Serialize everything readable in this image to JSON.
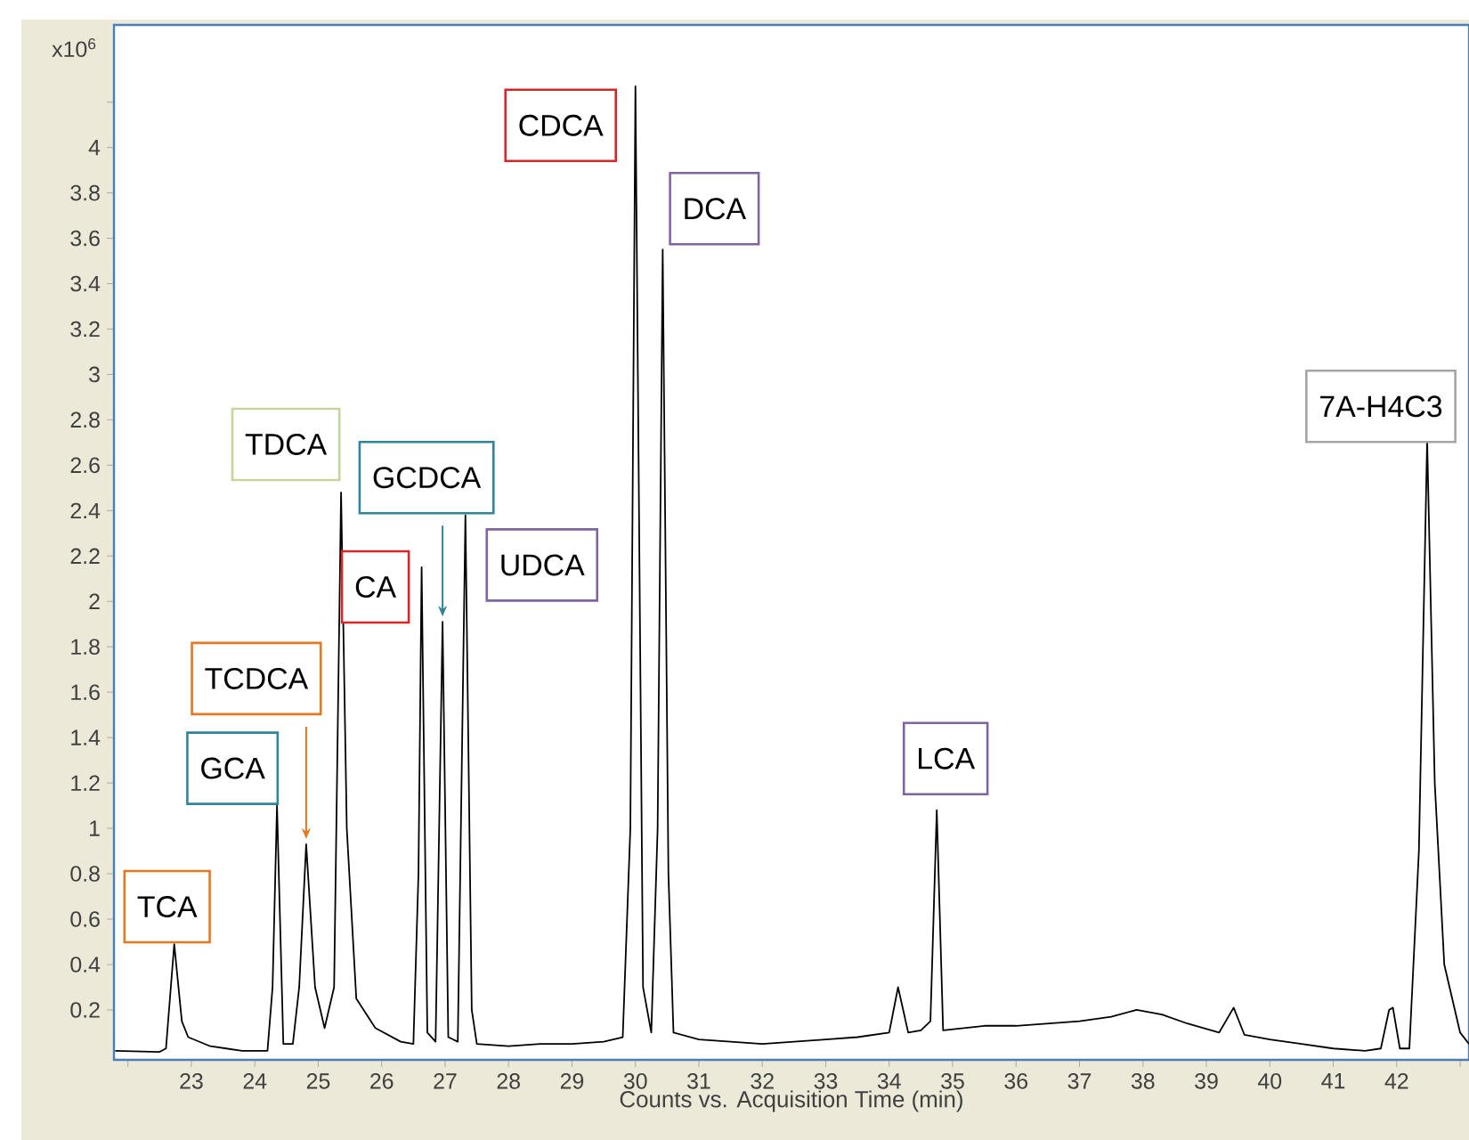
{
  "chart_data": {
    "type": "line",
    "xlabel": "Counts vs. Acquisition Time (min)",
    "ylabel": "x10$^{6}$",
    "xlim": [
      21.78,
      43.14
    ],
    "ylim": [
      -0.02,
      4.54
    ],
    "xticks": [
      {
        "value": 22,
        "label": null
      },
      23,
      24,
      25,
      26,
      27,
      28,
      29,
      30,
      31,
      32,
      33,
      34,
      35,
      36,
      37,
      38,
      39,
      40,
      41,
      42,
      {
        "value": 43,
        "label": null
      }
    ],
    "yticks": [
      0.2,
      0.4,
      0.6,
      0.8,
      1,
      1.2,
      1.4,
      1.6,
      1.8,
      2,
      2.2,
      2.4,
      2.6,
      2.8,
      3,
      3.2,
      3.4,
      3.6,
      3.8,
      4,
      {
        "value": 4.2,
        "label": null
      }
    ],
    "grid": false,
    "series": [
      {
        "color": "#000000",
        "x": [
          21.8,
          22.5,
          22.6,
          22.73,
          22.85,
          22.95,
          23.3,
          23.8,
          24.2,
          24.28,
          24.35,
          24.45,
          24.6,
          24.7,
          24.81,
          24.95,
          25.1,
          25.25,
          25.36,
          25.45,
          25.6,
          25.9,
          26.3,
          26.5,
          26.58,
          26.63,
          26.72,
          26.85,
          26.96,
          27.05,
          27.2,
          27.32,
          27.42,
          27.5,
          28.0,
          28.5,
          29.0,
          29.5,
          29.8,
          29.92,
          30.0,
          30.12,
          30.25,
          30.35,
          30.43,
          30.52,
          30.6,
          31.0,
          31.5,
          32.0,
          32.5,
          33.0,
          33.5,
          34.0,
          34.14,
          34.3,
          34.5,
          34.65,
          34.75,
          34.85,
          35.5,
          36.0,
          36.5,
          37.0,
          37.5,
          37.9,
          38.3,
          38.7,
          39.2,
          39.43,
          39.6,
          40.0,
          40.5,
          41.0,
          41.5,
          41.75,
          41.88,
          41.94,
          42.05,
          42.2,
          42.35,
          42.48,
          42.6,
          42.75,
          43.0,
          43.14
        ],
        "values": [
          0.02,
          0.015,
          0.03,
          0.49,
          0.15,
          0.08,
          0.04,
          0.02,
          0.02,
          0.3,
          1.1,
          0.05,
          0.05,
          0.3,
          0.93,
          0.3,
          0.12,
          0.3,
          2.48,
          1.0,
          0.25,
          0.12,
          0.06,
          0.05,
          0.8,
          2.15,
          0.1,
          0.06,
          1.91,
          0.08,
          0.06,
          2.38,
          0.2,
          0.05,
          0.04,
          0.05,
          0.05,
          0.06,
          0.08,
          1.0,
          4.27,
          0.3,
          0.1,
          1.0,
          3.55,
          0.8,
          0.1,
          0.07,
          0.06,
          0.05,
          0.06,
          0.07,
          0.08,
          0.1,
          0.3,
          0.1,
          0.11,
          0.15,
          1.08,
          0.11,
          0.13,
          0.13,
          0.14,
          0.15,
          0.17,
          0.2,
          0.18,
          0.14,
          0.1,
          0.21,
          0.09,
          0.07,
          0.05,
          0.03,
          0.02,
          0.03,
          0.2,
          0.21,
          0.03,
          0.03,
          0.9,
          2.71,
          1.2,
          0.4,
          0.1,
          0.05
        ]
      }
    ],
    "annotations": [
      {
        "text": "TCA",
        "x": 22.73,
        "y": 0.49
      },
      {
        "text": "GCA",
        "x": 24.35,
        "y": 1.1
      },
      {
        "text": "TCDCA",
        "x": 24.81,
        "y": 0.93
      },
      {
        "text": "TDCA",
        "x": 25.36,
        "y": 2.48
      },
      {
        "text": "CA",
        "x": 26.63,
        "y": 2.15
      },
      {
        "text": "GCDCA",
        "x": 26.96,
        "y": 1.91
      },
      {
        "text": "UDCA",
        "x": 27.32,
        "y": 2.38
      },
      {
        "text": "CDCA",
        "x": 30.0,
        "y": 4.27
      },
      {
        "text": "DCA",
        "x": 30.43,
        "y": 3.55
      },
      {
        "text": "LCA",
        "x": 34.75,
        "y": 1.08
      },
      {
        "text": "7A-H4C3",
        "x": 42.48,
        "y": 2.71
      }
    ]
  }
}
